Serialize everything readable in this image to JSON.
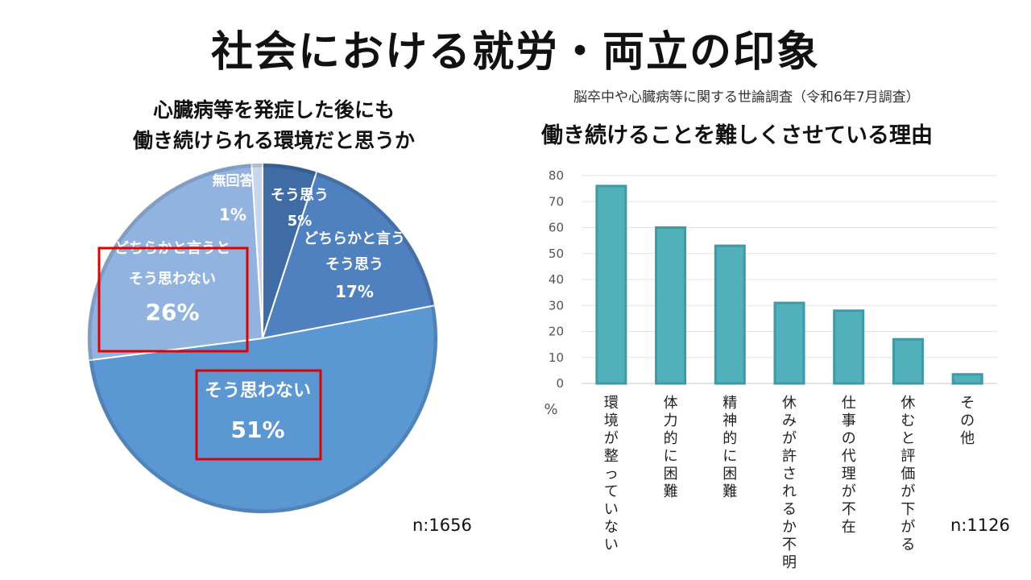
{
  "main_title": "社会における就労・両立の印象",
  "pie_chart_data": {
    "type": "pie",
    "title_lines": [
      "心臓病等を発症した後にも",
      "働き続けられる環境だと思うか"
    ],
    "slices": [
      {
        "name_lines": [
          "そう思う"
        ],
        "value": 5,
        "pct_label": "5%",
        "color": "#3f6ca5"
      },
      {
        "name_lines": [
          "どちらかと言う",
          "そう思う"
        ],
        "value": 17,
        "pct_label": "17%",
        "color": "#4f80bf"
      },
      {
        "name_lines": [
          "そう思わない"
        ],
        "value": 51,
        "pct_label": "51%",
        "color": "#5b97d3"
      },
      {
        "name_lines": [
          "どちらかと言うと",
          "そう思わない"
        ],
        "value": 26,
        "pct_label": "26%",
        "color": "#92b3df"
      },
      {
        "name_lines": [
          "無回答"
        ],
        "value": 1,
        "pct_label": "1%",
        "color": "#c8d5ea"
      }
    ],
    "highlighted": [
      "そう思わない",
      "どちらかと言うと そう思わない"
    ],
    "n_label": "n:1656"
  },
  "chart_data": {
    "type": "bar",
    "title": "働き続けることを難しくさせている理由",
    "source": "脳卒中や心臓病等に関する世論調査（令和6年7月調査）",
    "categories": [
      "環境が整っていない",
      "体力的に困難",
      "精神的に困難",
      "休みが許されるか不明",
      "仕事の代理が不在",
      "休むと評価が下がる",
      "その他"
    ],
    "values": [
      76,
      60,
      53,
      31,
      28,
      17,
      3.5
    ],
    "ylim": [
      0,
      80
    ],
    "yticks": [
      "80",
      "70",
      "60",
      "50",
      "40",
      "30",
      "20",
      "10",
      "0"
    ],
    "ylabel": "%",
    "grid": true,
    "color": "#52b0ba",
    "n_label": "n:1126"
  }
}
